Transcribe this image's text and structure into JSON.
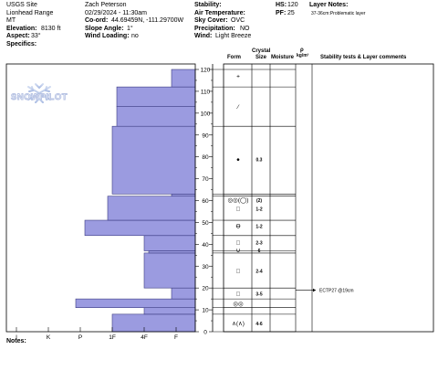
{
  "header": {
    "col1": [
      "USGS Site",
      "Lionhead Range",
      "MT"
    ],
    "elevation_label": "Elevation:",
    "elevation_value": "8130 ft",
    "aspect_label": "Aspect:",
    "aspect_value": "33°",
    "specifics_label": "Specifics:",
    "observer": "Zach Peterson",
    "datetime": "02/29/2024 - 11:30am",
    "coord_label": "Co-ord:",
    "coord_value": "44.69459N, -111.29700W",
    "slope_label": "Slope Angle:",
    "slope_value": "1°",
    "wind_loading_label": "Wind Loading:",
    "wind_loading_value": "no",
    "stability_label": "Stability:",
    "air_temp_label": "Air Temperature:",
    "sky_cover_label": "Sky Cover:",
    "sky_cover_value": "OVC",
    "precip_label": "Precipitation:",
    "precip_value": "NO",
    "wind_label": "Wind:",
    "wind_value": "Light Breeze",
    "hs_label": "HS:",
    "hs_value": "120",
    "pf_label": "PF:",
    "pf_value": "25",
    "layer_notes_label": "Layer Notes:",
    "layer_note": "37-36cm:Problematic layer"
  },
  "columns": {
    "crystal": "Crystal",
    "form": "Form",
    "size": "Size",
    "moisture": "Moisture",
    "rho": "ρ",
    "rho_unit": "kg/m³",
    "stability": "Stability tests & Layer comments"
  },
  "watermark": "SNOWPILOT",
  "notes_label": "Notes:",
  "chart_data": {
    "type": "bar",
    "y_ticks": [
      0,
      10,
      20,
      30,
      40,
      50,
      60,
      70,
      80,
      90,
      100,
      110,
      120
    ],
    "hardness_ticks": [
      "I",
      "K",
      "P",
      "1F",
      "4F",
      "F"
    ],
    "hardness_layers": [
      {
        "bottom": 0,
        "top": 8,
        "hardness": "1F"
      },
      {
        "bottom": 8,
        "top": 11,
        "hardness": "4F"
      },
      {
        "bottom": 11,
        "top": 15,
        "hardness": "P+"
      },
      {
        "bottom": 15,
        "top": 20,
        "hardness": "F+"
      },
      {
        "bottom": 20,
        "top": 36,
        "hardness": "4F"
      },
      {
        "bottom": 36,
        "top": 37,
        "hardness": "4F-"
      },
      {
        "bottom": 37,
        "top": 44,
        "hardness": "4F"
      },
      {
        "bottom": 44,
        "top": 51,
        "hardness": "P-"
      },
      {
        "bottom": 51,
        "top": 62,
        "hardness": "1F+"
      },
      {
        "bottom": 62,
        "top": 63,
        "hardness": "F+"
      },
      {
        "bottom": 63,
        "top": 94,
        "hardness": "1F"
      },
      {
        "bottom": 94,
        "top": 103,
        "hardness": "1F-"
      },
      {
        "bottom": 103,
        "top": 112,
        "hardness": "1F-"
      },
      {
        "bottom": 112,
        "top": 120,
        "hardness": "F+"
      }
    ],
    "layer_rows": [
      {
        "y": 117,
        "form": "+",
        "size": ""
      },
      {
        "y": 103,
        "form": "⁄",
        "size": ""
      },
      {
        "y": 79,
        "form": "●",
        "size": "0.3"
      },
      {
        "y": 60.5,
        "form": "◎◎(◯)",
        "size": "(2)"
      },
      {
        "y": 56.5,
        "form": "□",
        "size": "1-2"
      },
      {
        "y": 48.5,
        "form": "ϴ",
        "size": "1-2"
      },
      {
        "y": 41,
        "form": "□",
        "size": "2-3"
      },
      {
        "y": 37.5,
        "form": "∪",
        "size": "6"
      },
      {
        "y": 28,
        "form": "□",
        "size": "2-4"
      },
      {
        "y": 17.5,
        "form": "□",
        "size": "3-5"
      },
      {
        "y": 13,
        "form": "◎◎",
        "size": ""
      },
      {
        "y": 4,
        "form": "∧(∧)",
        "size": "4-6"
      }
    ],
    "layer_boundaries": [
      120,
      112,
      94,
      63,
      62,
      51,
      44,
      37,
      36,
      20,
      15,
      11,
      8,
      0
    ],
    "test_results": [
      {
        "y": 19,
        "label": "ECTP27 @19cm"
      }
    ]
  }
}
